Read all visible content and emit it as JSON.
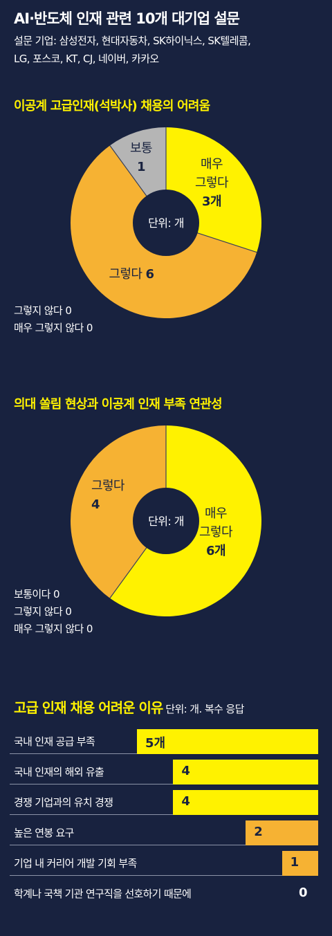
{
  "header": {
    "title": "AI·반도체 인재 관련 10개 대기업 설문",
    "survey_line1": "설문 기업: 삼성전자, 현대자동차, SK하이닉스, SK텔레콤,",
    "survey_line2": "LG, 포스코, KT, CJ, 네이버, 카카오"
  },
  "colors": {
    "background": "#18223f",
    "yellow": "#fff200",
    "orange": "#f6b233",
    "gray": "#b5b5b5",
    "navy": "#18223f"
  },
  "chart_data": [
    {
      "type": "pie",
      "title": "이공계 고급인재(석박사) 채용의 어려움",
      "center_label": "단위: 개",
      "slices": [
        {
          "label_lines": [
            "매우",
            "그렇다"
          ],
          "value_text": "3개",
          "value": 3,
          "color": "#fff200"
        },
        {
          "label_lines": [
            "그렇다"
          ],
          "value_text": "6",
          "value": 6,
          "color": "#f6b233"
        },
        {
          "label_lines": [
            "보통"
          ],
          "value_text": "1",
          "value": 1,
          "color": "#b5b5b5"
        }
      ],
      "zero_notes": [
        "그렇지 않다 0",
        "매우 그렇지 않다 0"
      ]
    },
    {
      "type": "pie",
      "title": "의대 쏠림 현상과 이공계 인재 부족 연관성",
      "center_label": "단위: 개",
      "slices": [
        {
          "label_lines": [
            "매우",
            "그렇다"
          ],
          "value_text": "6개",
          "value": 6,
          "color": "#fff200"
        },
        {
          "label_lines": [
            "그렇다"
          ],
          "value_text": "4",
          "value": 4,
          "color": "#f6b233"
        }
      ],
      "zero_notes": [
        "보통이다 0",
        "그렇지 않다 0",
        "매우 그렇지 않다 0"
      ]
    },
    {
      "type": "bar",
      "title": "고급 인재 채용 어려운 이유",
      "unit_note": "단위: 개. 복수 응답",
      "xlim": [
        0,
        5
      ],
      "bars": [
        {
          "label": "국내 인재 공급 부족",
          "value": 5,
          "value_text": "5개",
          "color": "#fff200"
        },
        {
          "label": "국내 인재의 해외 유출",
          "value": 4,
          "value_text": "4",
          "color": "#fff200"
        },
        {
          "label": "경쟁 기업과의 유치 경쟁",
          "value": 4,
          "value_text": "4",
          "color": "#fff200"
        },
        {
          "label": "높은 연봉 요구",
          "value": 2,
          "value_text": "2",
          "color": "#f6b233"
        },
        {
          "label": "기업 내 커리어 개발 기회 부족",
          "value": 1,
          "value_text": "1",
          "color": "#f6b233"
        },
        {
          "label": "학계나 국책 기관 연구직을 선호하기 때문에",
          "value": 0,
          "value_text": "0",
          "color": "#f6b233"
        }
      ]
    }
  ]
}
